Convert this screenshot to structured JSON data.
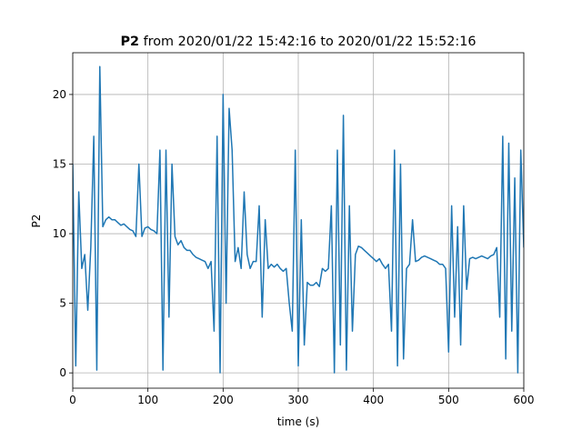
{
  "chart_data": {
    "type": "line",
    "title_bold": "P2",
    "title": "from 2020/01/22 15:42:16 to 2020/01/22 15:52:16",
    "x_label": "time (s)",
    "y_label": "P2",
    "xlim": [
      0,
      600
    ],
    "ylim": [
      -1.1,
      23.0
    ],
    "xticks": [
      0,
      100,
      200,
      300,
      400,
      500,
      600
    ],
    "yticks": [
      0,
      5,
      10,
      15,
      20
    ],
    "grid": true,
    "x": [
      0,
      4,
      8,
      12,
      16,
      20,
      24,
      28,
      32,
      36,
      40,
      44,
      48,
      52,
      56,
      60,
      64,
      68,
      72,
      76,
      80,
      84,
      88,
      92,
      96,
      100,
      104,
      108,
      112,
      116,
      120,
      124,
      128,
      132,
      136,
      140,
      144,
      148,
      152,
      156,
      160,
      164,
      168,
      172,
      176,
      180,
      184,
      188,
      192,
      196,
      200,
      204,
      208,
      212,
      216,
      220,
      224,
      228,
      232,
      236,
      240,
      244,
      248,
      252,
      256,
      260,
      264,
      268,
      272,
      276,
      280,
      284,
      288,
      292,
      296,
      300,
      304,
      308,
      312,
      316,
      320,
      324,
      328,
      332,
      336,
      340,
      344,
      348,
      352,
      356,
      360,
      364,
      368,
      372,
      376,
      380,
      384,
      388,
      392,
      396,
      400,
      404,
      408,
      412,
      416,
      420,
      424,
      428,
      432,
      436,
      440,
      444,
      448,
      452,
      456,
      460,
      464,
      468,
      472,
      476,
      480,
      484,
      488,
      492,
      496,
      500,
      504,
      508,
      512,
      516,
      520,
      524,
      528,
      532,
      536,
      540,
      544,
      548,
      552,
      556,
      560,
      564,
      568,
      572,
      576,
      580,
      584,
      588,
      592,
      596,
      600
    ],
    "series": [
      {
        "name": "P2",
        "color": "#1f77b4",
        "values": [
          15.0,
          0.5,
          13,
          7.5,
          8.5,
          4.5,
          9,
          17,
          0.2,
          22,
          10.5,
          11,
          11.2,
          11,
          11,
          10.8,
          10.6,
          10.7,
          10.5,
          10.3,
          10.2,
          9.8,
          15,
          9.8,
          10.4,
          10.5,
          10.3,
          10.2,
          10,
          16,
          0.2,
          16,
          4,
          15,
          9.8,
          9.2,
          9.5,
          9,
          8.8,
          8.8,
          8.5,
          8.3,
          8.2,
          8.1,
          8,
          7.5,
          8,
          3,
          17,
          0,
          20,
          5,
          19,
          16,
          8,
          9,
          7.5,
          13,
          8.5,
          7.5,
          8,
          8,
          12,
          4,
          11,
          7.5,
          7.8,
          7.6,
          7.8,
          7.5,
          7.3,
          7.5,
          5,
          3,
          16,
          0.5,
          11,
          2,
          6.5,
          6.3,
          6.3,
          6.5,
          6.2,
          7.5,
          7.3,
          7.5,
          12,
          0,
          16,
          2,
          18.5,
          0.2,
          12,
          3,
          8.5,
          9.1,
          9,
          8.8,
          8.6,
          8.4,
          8.2,
          8,
          8.2,
          7.8,
          7.5,
          7.8,
          3,
          16,
          0.5,
          15,
          1,
          7.5,
          7.8,
          11,
          8,
          8.1,
          8.3,
          8.4,
          8.3,
          8.2,
          8.1,
          8,
          7.8,
          7.8,
          7.5,
          1.5,
          12,
          4,
          10.5,
          2,
          12,
          6,
          8.2,
          8.3,
          8.2,
          8.3,
          8.4,
          8.3,
          8.2,
          8.4,
          8.5,
          9,
          4,
          17,
          1,
          16.5,
          3,
          14,
          0,
          16,
          9
        ]
      }
    ]
  }
}
